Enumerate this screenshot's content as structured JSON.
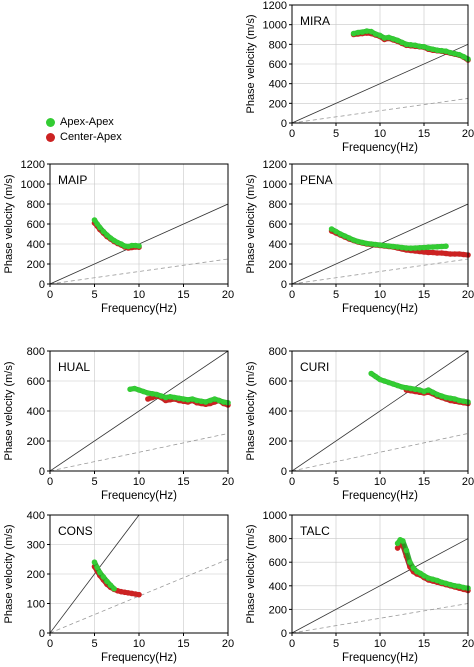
{
  "legend": [
    {
      "label": "Apex-Apex",
      "color": "#33cc33"
    },
    {
      "label": "Center-Apex",
      "color": "#cc2222"
    }
  ],
  "chart_data": [
    {
      "type": "scatter",
      "title": "MIRA",
      "xlabel": "Frequency(Hz)",
      "ylabel": "Phase velocity (m/s)",
      "xlim": [
        0,
        20
      ],
      "ylim": [
        0,
        1200
      ],
      "xticks": [
        0,
        5,
        10,
        15,
        20
      ],
      "yticks": [
        0,
        200,
        400,
        600,
        800,
        1000,
        1200
      ],
      "grid": true,
      "lines": [
        {
          "style": "solid",
          "points": [
            [
              0,
              0
            ],
            [
              20,
              800
            ]
          ]
        },
        {
          "style": "dashed",
          "points": [
            [
              0,
              0
            ],
            [
              20,
              250
            ]
          ]
        }
      ],
      "series": [
        {
          "name": "Center-Apex",
          "x": [
            7,
            7.5,
            8,
            8.5,
            9,
            9.5,
            10,
            10.5,
            11,
            11.5,
            12,
            12.5,
            13,
            13.5,
            14,
            14.5,
            15,
            15.5,
            16,
            16.5,
            17,
            17.5,
            18,
            18.5,
            19,
            19.5,
            20
          ],
          "y": [
            900,
            905,
            910,
            915,
            910,
            895,
            880,
            850,
            860,
            845,
            830,
            810,
            790,
            785,
            780,
            775,
            770,
            750,
            740,
            735,
            730,
            720,
            710,
            700,
            690,
            670,
            640
          ]
        },
        {
          "name": "Apex-Apex",
          "x": [
            7,
            7.5,
            8,
            8.5,
            9,
            9.5,
            10,
            10.5,
            11,
            11.5,
            12,
            12.5,
            13,
            13.5,
            14,
            14.5,
            15,
            15.5,
            16,
            16.5,
            17,
            17.5,
            18,
            18.5,
            19,
            19.5,
            20
          ],
          "y": [
            910,
            920,
            925,
            935,
            930,
            905,
            890,
            865,
            870,
            855,
            840,
            820,
            800,
            795,
            790,
            780,
            775,
            760,
            750,
            740,
            735,
            730,
            715,
            705,
            695,
            675,
            650
          ]
        }
      ]
    },
    {
      "type": "scatter",
      "title": "MAIP",
      "xlabel": "Frequency(Hz)",
      "ylabel": "Phase velocity (m/s)",
      "xlim": [
        0,
        20
      ],
      "ylim": [
        0,
        1200
      ],
      "xticks": [
        0,
        5,
        10,
        15,
        20
      ],
      "yticks": [
        0,
        200,
        400,
        600,
        800,
        1000,
        1200
      ],
      "grid": true,
      "lines": [
        {
          "style": "solid",
          "points": [
            [
              0,
              0
            ],
            [
              20,
              800
            ]
          ]
        },
        {
          "style": "dashed",
          "points": [
            [
              0,
              0
            ],
            [
              20,
              250
            ]
          ]
        }
      ],
      "series": [
        {
          "name": "Center-Apex",
          "x": [
            5,
            5.3,
            5.6,
            6,
            6.4,
            6.8,
            7.2,
            7.6,
            8,
            8.4,
            8.8,
            9.2,
            9.6,
            10
          ],
          "y": [
            610,
            580,
            545,
            510,
            475,
            450,
            425,
            405,
            390,
            370,
            360,
            365,
            370,
            368
          ]
        },
        {
          "name": "Apex-Apex",
          "x": [
            5,
            5.3,
            5.6,
            6,
            6.4,
            6.8,
            7.2,
            7.6,
            8,
            8.4,
            8.8,
            9.2,
            9.6,
            10
          ],
          "y": [
            640,
            600,
            565,
            525,
            490,
            460,
            435,
            415,
            400,
            380,
            375,
            385,
            385,
            380
          ]
        }
      ]
    },
    {
      "type": "scatter",
      "title": "PENA",
      "xlabel": "Frequency(Hz)",
      "ylabel": "Phase velocity (m/s)",
      "xlim": [
        0,
        20
      ],
      "ylim": [
        0,
        1200
      ],
      "xticks": [
        0,
        5,
        10,
        15,
        20
      ],
      "yticks": [
        0,
        200,
        400,
        600,
        800,
        1000,
        1200
      ],
      "grid": true,
      "lines": [
        {
          "style": "solid",
          "points": [
            [
              0,
              0
            ],
            [
              20,
              800
            ]
          ]
        },
        {
          "style": "dashed",
          "points": [
            [
              0,
              0
            ],
            [
              20,
              250
            ]
          ]
        }
      ],
      "series": [
        {
          "name": "Center-Apex",
          "x": [
            4.5,
            5,
            5.5,
            6,
            6.5,
            7,
            7.5,
            8,
            8.5,
            9,
            9.5,
            10,
            10.5,
            11,
            11.5,
            12,
            12.5,
            13,
            13.5,
            14,
            14.5,
            15,
            15.5,
            16,
            16.5,
            17,
            17.5,
            18,
            18.5,
            19,
            19.5,
            20
          ],
          "y": [
            530,
            510,
            490,
            470,
            450,
            435,
            420,
            410,
            400,
            395,
            390,
            385,
            380,
            375,
            370,
            360,
            350,
            340,
            335,
            330,
            325,
            320,
            315,
            315,
            310,
            310,
            305,
            300,
            300,
            300,
            295,
            290
          ]
        },
        {
          "name": "Apex-Apex",
          "x": [
            4.5,
            5,
            5.5,
            6,
            6.5,
            7,
            7.5,
            8,
            8.5,
            9,
            9.5,
            10,
            10.5,
            11,
            11.5,
            12,
            12.5,
            13,
            13.5,
            14,
            14.5,
            15,
            15.5,
            16,
            16.5,
            17,
            17.5
          ],
          "y": [
            550,
            525,
            500,
            480,
            460,
            440,
            425,
            415,
            405,
            400,
            395,
            390,
            385,
            380,
            375,
            370,
            365,
            360,
            358,
            360,
            362,
            365,
            368,
            370,
            372,
            375,
            378
          ]
        }
      ]
    },
    {
      "type": "scatter",
      "title": "HUAL",
      "xlabel": "Frequency(Hz)",
      "ylabel": "Phase velocity (m/s)",
      "xlim": [
        0,
        20
      ],
      "ylim": [
        0,
        800
      ],
      "xticks": [
        0,
        5,
        10,
        15,
        20
      ],
      "yticks": [
        0,
        200,
        400,
        600,
        800
      ],
      "grid": true,
      "lines": [
        {
          "style": "solid",
          "points": [
            [
              0,
              0
            ],
            [
              20,
              800
            ]
          ]
        },
        {
          "style": "dashed",
          "points": [
            [
              0,
              0
            ],
            [
              20,
              250
            ]
          ]
        }
      ],
      "series": [
        {
          "name": "Center-Apex",
          "x": [
            11,
            11.5,
            12,
            12.5,
            13,
            13.5,
            14,
            14.5,
            15,
            15.5,
            16,
            16.5,
            17,
            17.5,
            18,
            18.5,
            19,
            19.5,
            20
          ],
          "y": [
            480,
            490,
            500,
            490,
            470,
            475,
            480,
            470,
            465,
            460,
            470,
            455,
            450,
            445,
            450,
            460,
            470,
            450,
            440
          ]
        },
        {
          "name": "Apex-Apex",
          "x": [
            9,
            9.5,
            10,
            10.5,
            11,
            11.5,
            12,
            12.5,
            13,
            13.5,
            14,
            14.5,
            15,
            15.5,
            16,
            16.5,
            17,
            17.5,
            18,
            18.5,
            19,
            19.5,
            20
          ],
          "y": [
            545,
            550,
            540,
            530,
            520,
            515,
            510,
            500,
            490,
            495,
            490,
            485,
            480,
            475,
            480,
            470,
            465,
            460,
            470,
            480,
            470,
            460,
            455
          ]
        }
      ]
    },
    {
      "type": "scatter",
      "title": "CURI",
      "xlabel": "Frequency(Hz)",
      "ylabel": "Phase velocity (m/s)",
      "xlim": [
        0,
        20
      ],
      "ylim": [
        0,
        800
      ],
      "xticks": [
        0,
        5,
        10,
        15,
        20
      ],
      "yticks": [
        0,
        200,
        400,
        600,
        800
      ],
      "grid": true,
      "lines": [
        {
          "style": "solid",
          "points": [
            [
              0,
              0
            ],
            [
              20,
              800
            ]
          ]
        },
        {
          "style": "dashed",
          "points": [
            [
              0,
              0
            ],
            [
              20,
              250
            ]
          ]
        }
      ],
      "series": [
        {
          "name": "Center-Apex",
          "x": [
            13,
            13.5,
            14,
            14.5,
            15,
            15.5,
            16,
            16.5,
            17,
            17.5,
            18,
            18.5,
            19,
            19.5,
            20
          ],
          "y": [
            540,
            535,
            530,
            525,
            520,
            525,
            515,
            500,
            490,
            480,
            470,
            465,
            460,
            455,
            450
          ]
        },
        {
          "name": "Apex-Apex",
          "x": [
            9,
            9.5,
            10,
            10.5,
            11,
            11.5,
            12,
            12.5,
            13,
            13.5,
            14,
            14.5,
            15,
            15.5,
            16,
            16.5,
            17,
            17.5,
            18,
            18.5,
            19,
            19.5,
            20
          ],
          "y": [
            650,
            630,
            610,
            600,
            590,
            580,
            570,
            560,
            555,
            550,
            545,
            540,
            530,
            540,
            525,
            510,
            500,
            490,
            485,
            480,
            470,
            465,
            460
          ]
        }
      ]
    },
    {
      "type": "scatter",
      "title": "CONS",
      "xlabel": "Frequency(Hz)",
      "ylabel": "Phase velocity (m/s)",
      "xlim": [
        0,
        20
      ],
      "ylim": [
        0,
        400
      ],
      "xticks": [
        0,
        5,
        10,
        15,
        20
      ],
      "yticks": [
        0,
        100,
        200,
        300,
        400
      ],
      "grid": true,
      "lines": [
        {
          "style": "solid",
          "points": [
            [
              0,
              0
            ],
            [
              10,
              400
            ]
          ]
        },
        {
          "style": "dashed",
          "points": [
            [
              0,
              0
            ],
            [
              20,
              250
            ]
          ]
        }
      ],
      "series": [
        {
          "name": "Center-Apex",
          "x": [
            5,
            5.3,
            5.6,
            6,
            6.4,
            6.8,
            7.2,
            7.6,
            8,
            8.4,
            8.8,
            9.2,
            9.6,
            10
          ],
          "y": [
            225,
            210,
            195,
            180,
            165,
            155,
            148,
            143,
            140,
            138,
            136,
            134,
            132,
            130
          ]
        },
        {
          "name": "Apex-Apex",
          "x": [
            5,
            5.3,
            5.6,
            6,
            6.4,
            6.8,
            7.2
          ],
          "y": [
            240,
            222,
            205,
            190,
            175,
            162,
            150
          ]
        }
      ]
    },
    {
      "type": "scatter",
      "title": "TALC",
      "xlabel": "Frequency(Hz)",
      "ylabel": "Phase velocity (m/s)",
      "xlim": [
        0,
        20
      ],
      "ylim": [
        0,
        1000
      ],
      "xticks": [
        0,
        5,
        10,
        15,
        20
      ],
      "yticks": [
        0,
        200,
        400,
        600,
        800,
        1000
      ],
      "grid": true,
      "lines": [
        {
          "style": "solid",
          "points": [
            [
              0,
              0
            ],
            [
              20,
              800
            ]
          ]
        },
        {
          "style": "dashed",
          "points": [
            [
              0,
              0
            ],
            [
              20,
              250
            ]
          ]
        }
      ],
      "series": [
        {
          "name": "Center-Apex",
          "x": [
            12,
            12.3,
            12.6,
            13,
            13.4,
            13.8,
            14.2,
            14.6,
            15,
            15.5,
            16,
            16.5,
            17,
            17.5,
            18,
            18.5,
            19,
            19.5,
            20
          ],
          "y": [
            720,
            760,
            740,
            650,
            560,
            520,
            500,
            490,
            470,
            450,
            440,
            430,
            420,
            410,
            400,
            390,
            380,
            370,
            360
          ]
        },
        {
          "name": "Apex-Apex",
          "x": [
            12,
            12.3,
            12.6,
            13,
            13.4,
            13.8,
            14.2,
            14.6,
            15,
            15.5,
            16,
            16.5,
            17,
            17.5,
            18,
            18.5,
            19,
            19.5,
            20
          ],
          "y": [
            760,
            790,
            780,
            700,
            600,
            550,
            520,
            505,
            485,
            465,
            455,
            445,
            430,
            420,
            410,
            400,
            395,
            385,
            380
          ]
        }
      ]
    }
  ]
}
